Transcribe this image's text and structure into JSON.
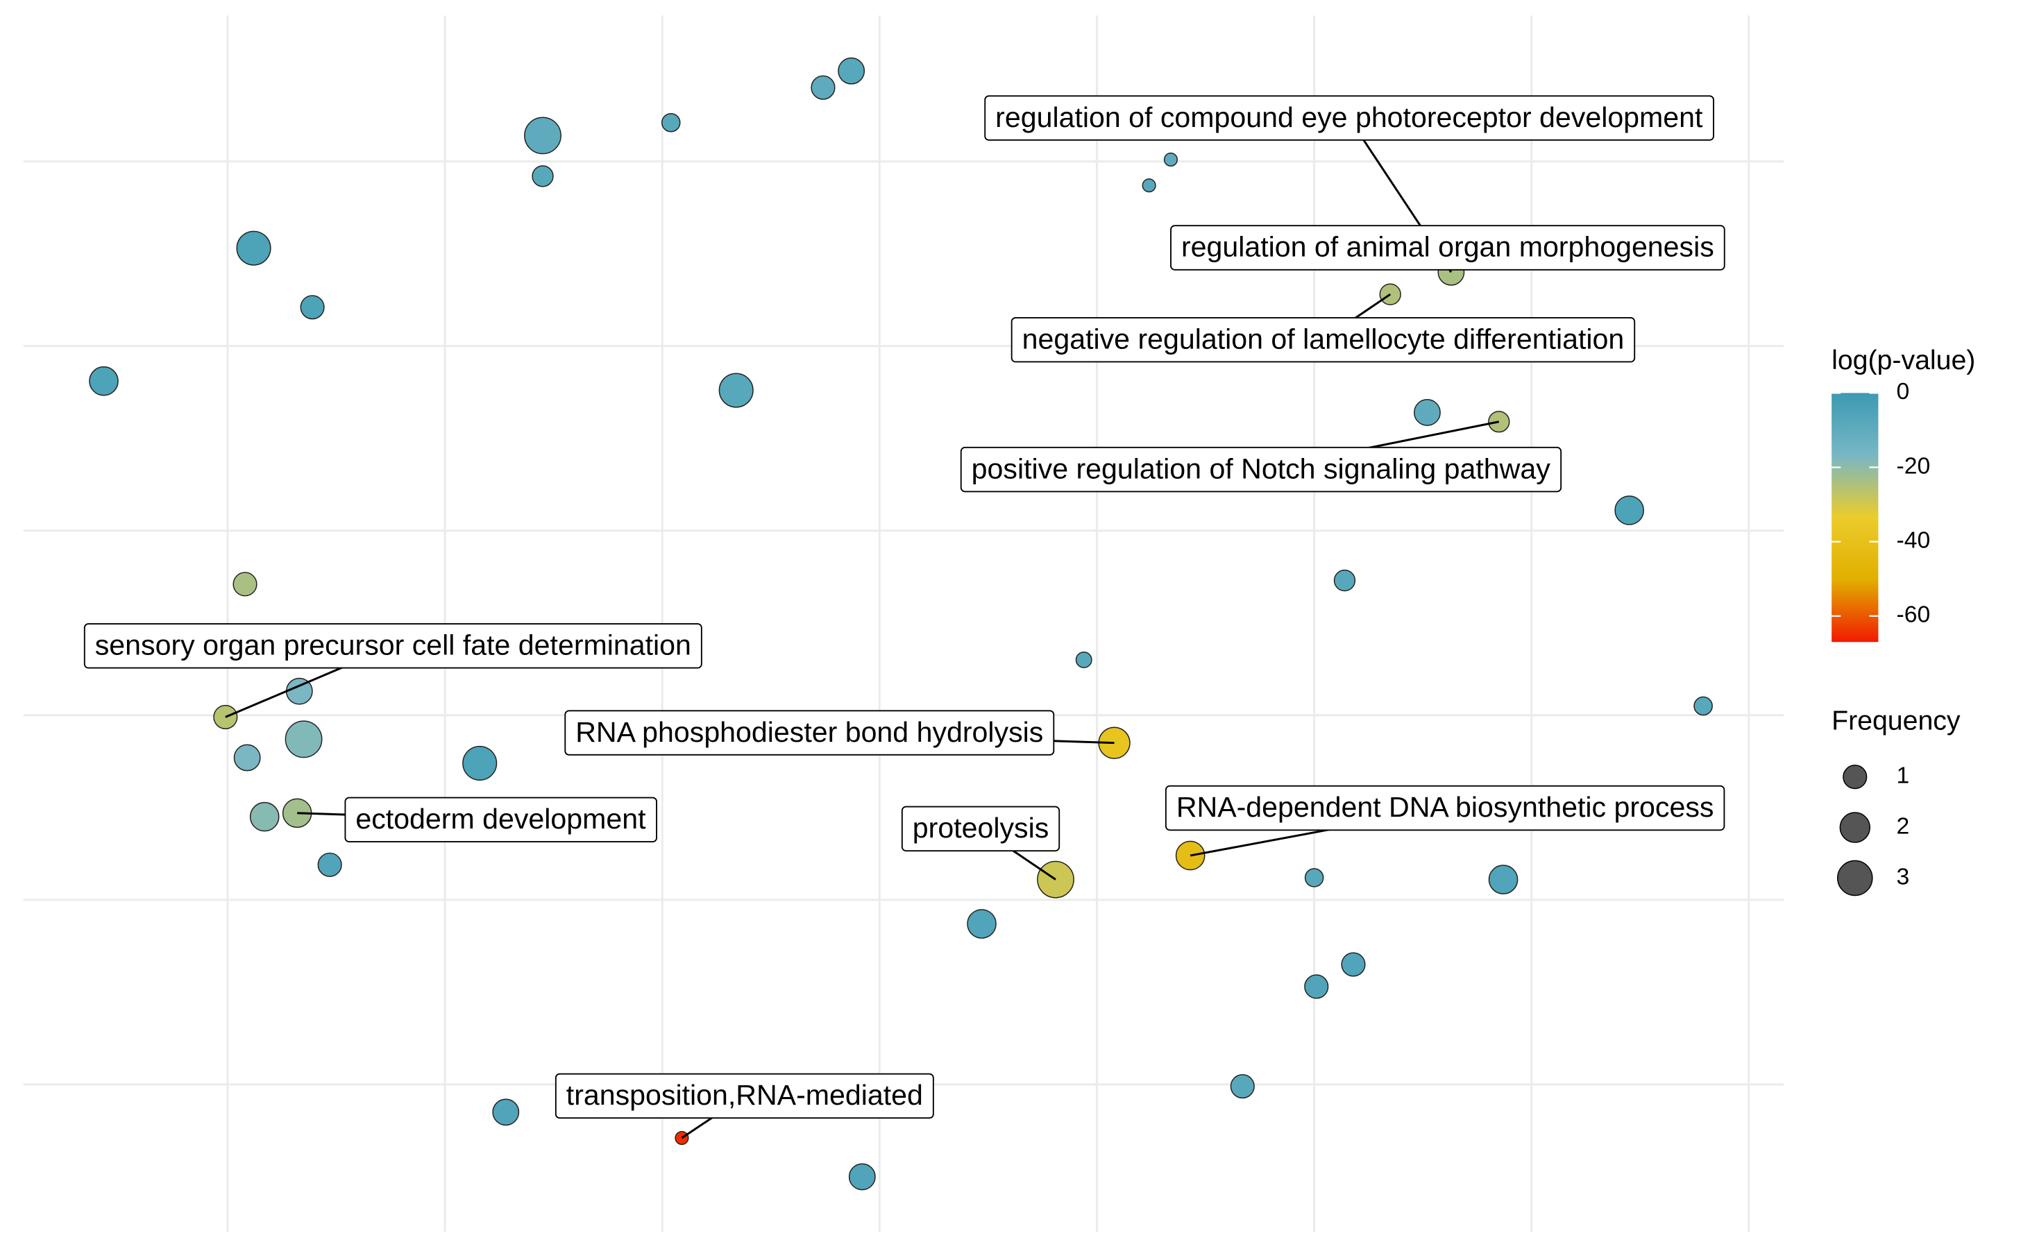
{
  "chart_data": {
    "type": "scatter",
    "x": [
      2.87,
      2.74,
      1.45,
      2.04,
      1.45,
      4.34,
      4.24,
      0.12,
      0.39,
      -0.57,
      2.34,
      5.63,
      5.35,
      5.52,
      5.85,
      6.45,
      0.08,
      5.14,
      3.94,
      6.79,
      0.33,
      -0.01,
      0.35,
      0.09,
      1.16,
      4.08,
      0.17,
      0.32,
      0.47,
      4.43,
      3.81,
      5.0,
      5.87,
      3.47,
      5.18,
      5.01,
      4.67,
      1.28,
      2.09,
      2.92,
      5.52
    ],
    "y": [
      5.49,
      5.4,
      5.14,
      5.21,
      4.92,
      5.01,
      4.87,
      4.53,
      4.21,
      3.81,
      3.76,
      4.4,
      4.28,
      3.64,
      3.59,
      3.11,
      2.71,
      2.73,
      2.3,
      2.05,
      2.13,
      1.99,
      1.87,
      1.77,
      1.74,
      1.85,
      1.45,
      1.47,
      1.19,
      1.24,
      1.11,
      1.12,
      1.11,
      0.87,
      0.65,
      0.53,
      -0.01,
      -0.15,
      -0.29,
      -0.5,
      4.52
    ],
    "sizes": [
      1.36,
      1.0,
      3.36,
      0.44,
      0.69,
      0.11,
      0.11,
      2.78,
      1.0,
      1.78,
      2.78,
      1.36,
      0.69,
      1.36,
      0.69,
      1.78,
      1.0,
      0.69,
      0.25,
      0.44,
      1.36,
      1.0,
      3.36,
      1.36,
      2.78,
      2.25,
      1.78,
      1.78,
      1.0,
      1.78,
      3.36,
      0.44,
      1.78,
      1.78,
      1.0,
      1.0,
      1.0,
      1.36,
      0.11,
      1.36,
      0.69
    ],
    "color_values": [
      -8,
      -10,
      -10,
      -8,
      -8,
      -10,
      -8,
      -5,
      -5,
      -5,
      -8,
      -24,
      -25,
      -10,
      -25,
      -5,
      -24,
      -8,
      -8,
      -8,
      -17,
      -26,
      -18,
      -17,
      -5,
      -38,
      -19,
      -23,
      -6,
      -42,
      -29,
      -8,
      -6,
      -6,
      -6,
      -6,
      -8,
      -6,
      -65,
      -6,
      -22
    ],
    "point_labels": [
      null,
      null,
      null,
      null,
      null,
      null,
      null,
      null,
      null,
      null,
      null,
      "regulation of compound eye photoreceptor development",
      "negative regulation of lamellocyte differentiation",
      null,
      "positive regulation of Notch signaling pathway",
      null,
      null,
      null,
      null,
      null,
      null,
      "sensory organ precursor cell fate determination",
      null,
      null,
      null,
      "RNA phosphodiester bond hydrolysis",
      null,
      "ectoderm development",
      null,
      "RNA-dependent DNA biosynthetic process",
      "proteolysis",
      null,
      null,
      null,
      null,
      null,
      null,
      null,
      "transposition,RNA-mediated",
      null,
      "regulation of animal organ morphogenesis"
    ],
    "xlim": [
      -0.94,
      7.16
    ],
    "ylim": [
      -0.8,
      5.79
    ],
    "xticks": [
      0,
      1,
      2,
      3,
      4,
      5,
      6,
      7
    ],
    "yticks": [
      0,
      1,
      2,
      3,
      4,
      5
    ],
    "grid": true,
    "color_legend_title": "log(p-value)",
    "clim": [
      -67,
      0
    ],
    "cticks": [
      0,
      -20,
      -40,
      -60
    ],
    "color_stops": [
      {
        "value": 0,
        "color": "#3B9AB2"
      },
      {
        "value": -16.75,
        "color": "#78B7C5"
      },
      {
        "value": -33.5,
        "color": "#EBCC2A"
      },
      {
        "value": -50.25,
        "color": "#E1AF00"
      },
      {
        "value": -67,
        "color": "#F21A00"
      }
    ],
    "size_legend_title": "Frequency",
    "size_legend": [
      1,
      2,
      3
    ],
    "size_legend_color": "#555555",
    "legend_position": "right"
  }
}
